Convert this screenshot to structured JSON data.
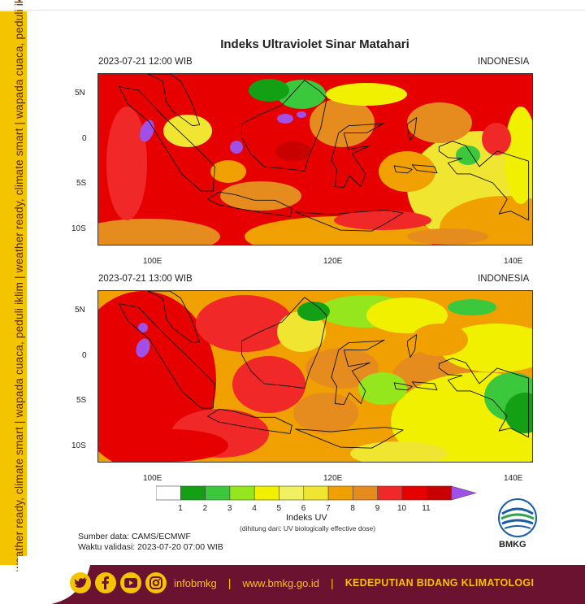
{
  "side_banner": "weather ready, climate smart  |  wapada cuaca, peduli iklim  |  weather ready, climate smart  |  wapada cuaca, peduli iklim",
  "title": "Indeks Ultraviolet Sinar Matahari",
  "panels": [
    {
      "datetime": "2023-07-21  12:00 WIB",
      "region": "INDONESIA",
      "scheme": "noon"
    },
    {
      "datetime": "2023-07-21  13:00 WIB",
      "region": "INDONESIA",
      "scheme": "afternoon"
    }
  ],
  "axes": {
    "lat_ticks": [
      "5N",
      "0",
      "5S",
      "10S"
    ],
    "lon_ticks": [
      "100E",
      "120E",
      "140E"
    ]
  },
  "colorbar": {
    "title": "Indeks UV",
    "subtitle": "(dihitung dari: UV biologically effective dose)",
    "labels": [
      "1",
      "2",
      "3",
      "4",
      "5",
      "6",
      "7",
      "8",
      "9",
      "10",
      "11"
    ],
    "colors": [
      "#ffffff",
      "#14a014",
      "#3cc83c",
      "#96e61e",
      "#f0f000",
      "#f0f060",
      "#f0e632",
      "#f0a000",
      "#e68c1e",
      "#f02828",
      "#e60000",
      "#c80000",
      "#a050e6"
    ]
  },
  "source": {
    "line1": "Sumber data: CAMS/ECMWF",
    "line2": "Waktu validasi: 2023-07-20 07:00 WIB"
  },
  "logo": {
    "text": "BMKG"
  },
  "footer": {
    "social_icons": [
      "twitter-icon",
      "facebook-icon",
      "youtube-icon",
      "instagram-icon"
    ],
    "handle": "infobmkg",
    "website": "www.bmkg.go.id",
    "department": "KEDEPUTIAN BIDANG KLIMATOLOGI"
  }
}
